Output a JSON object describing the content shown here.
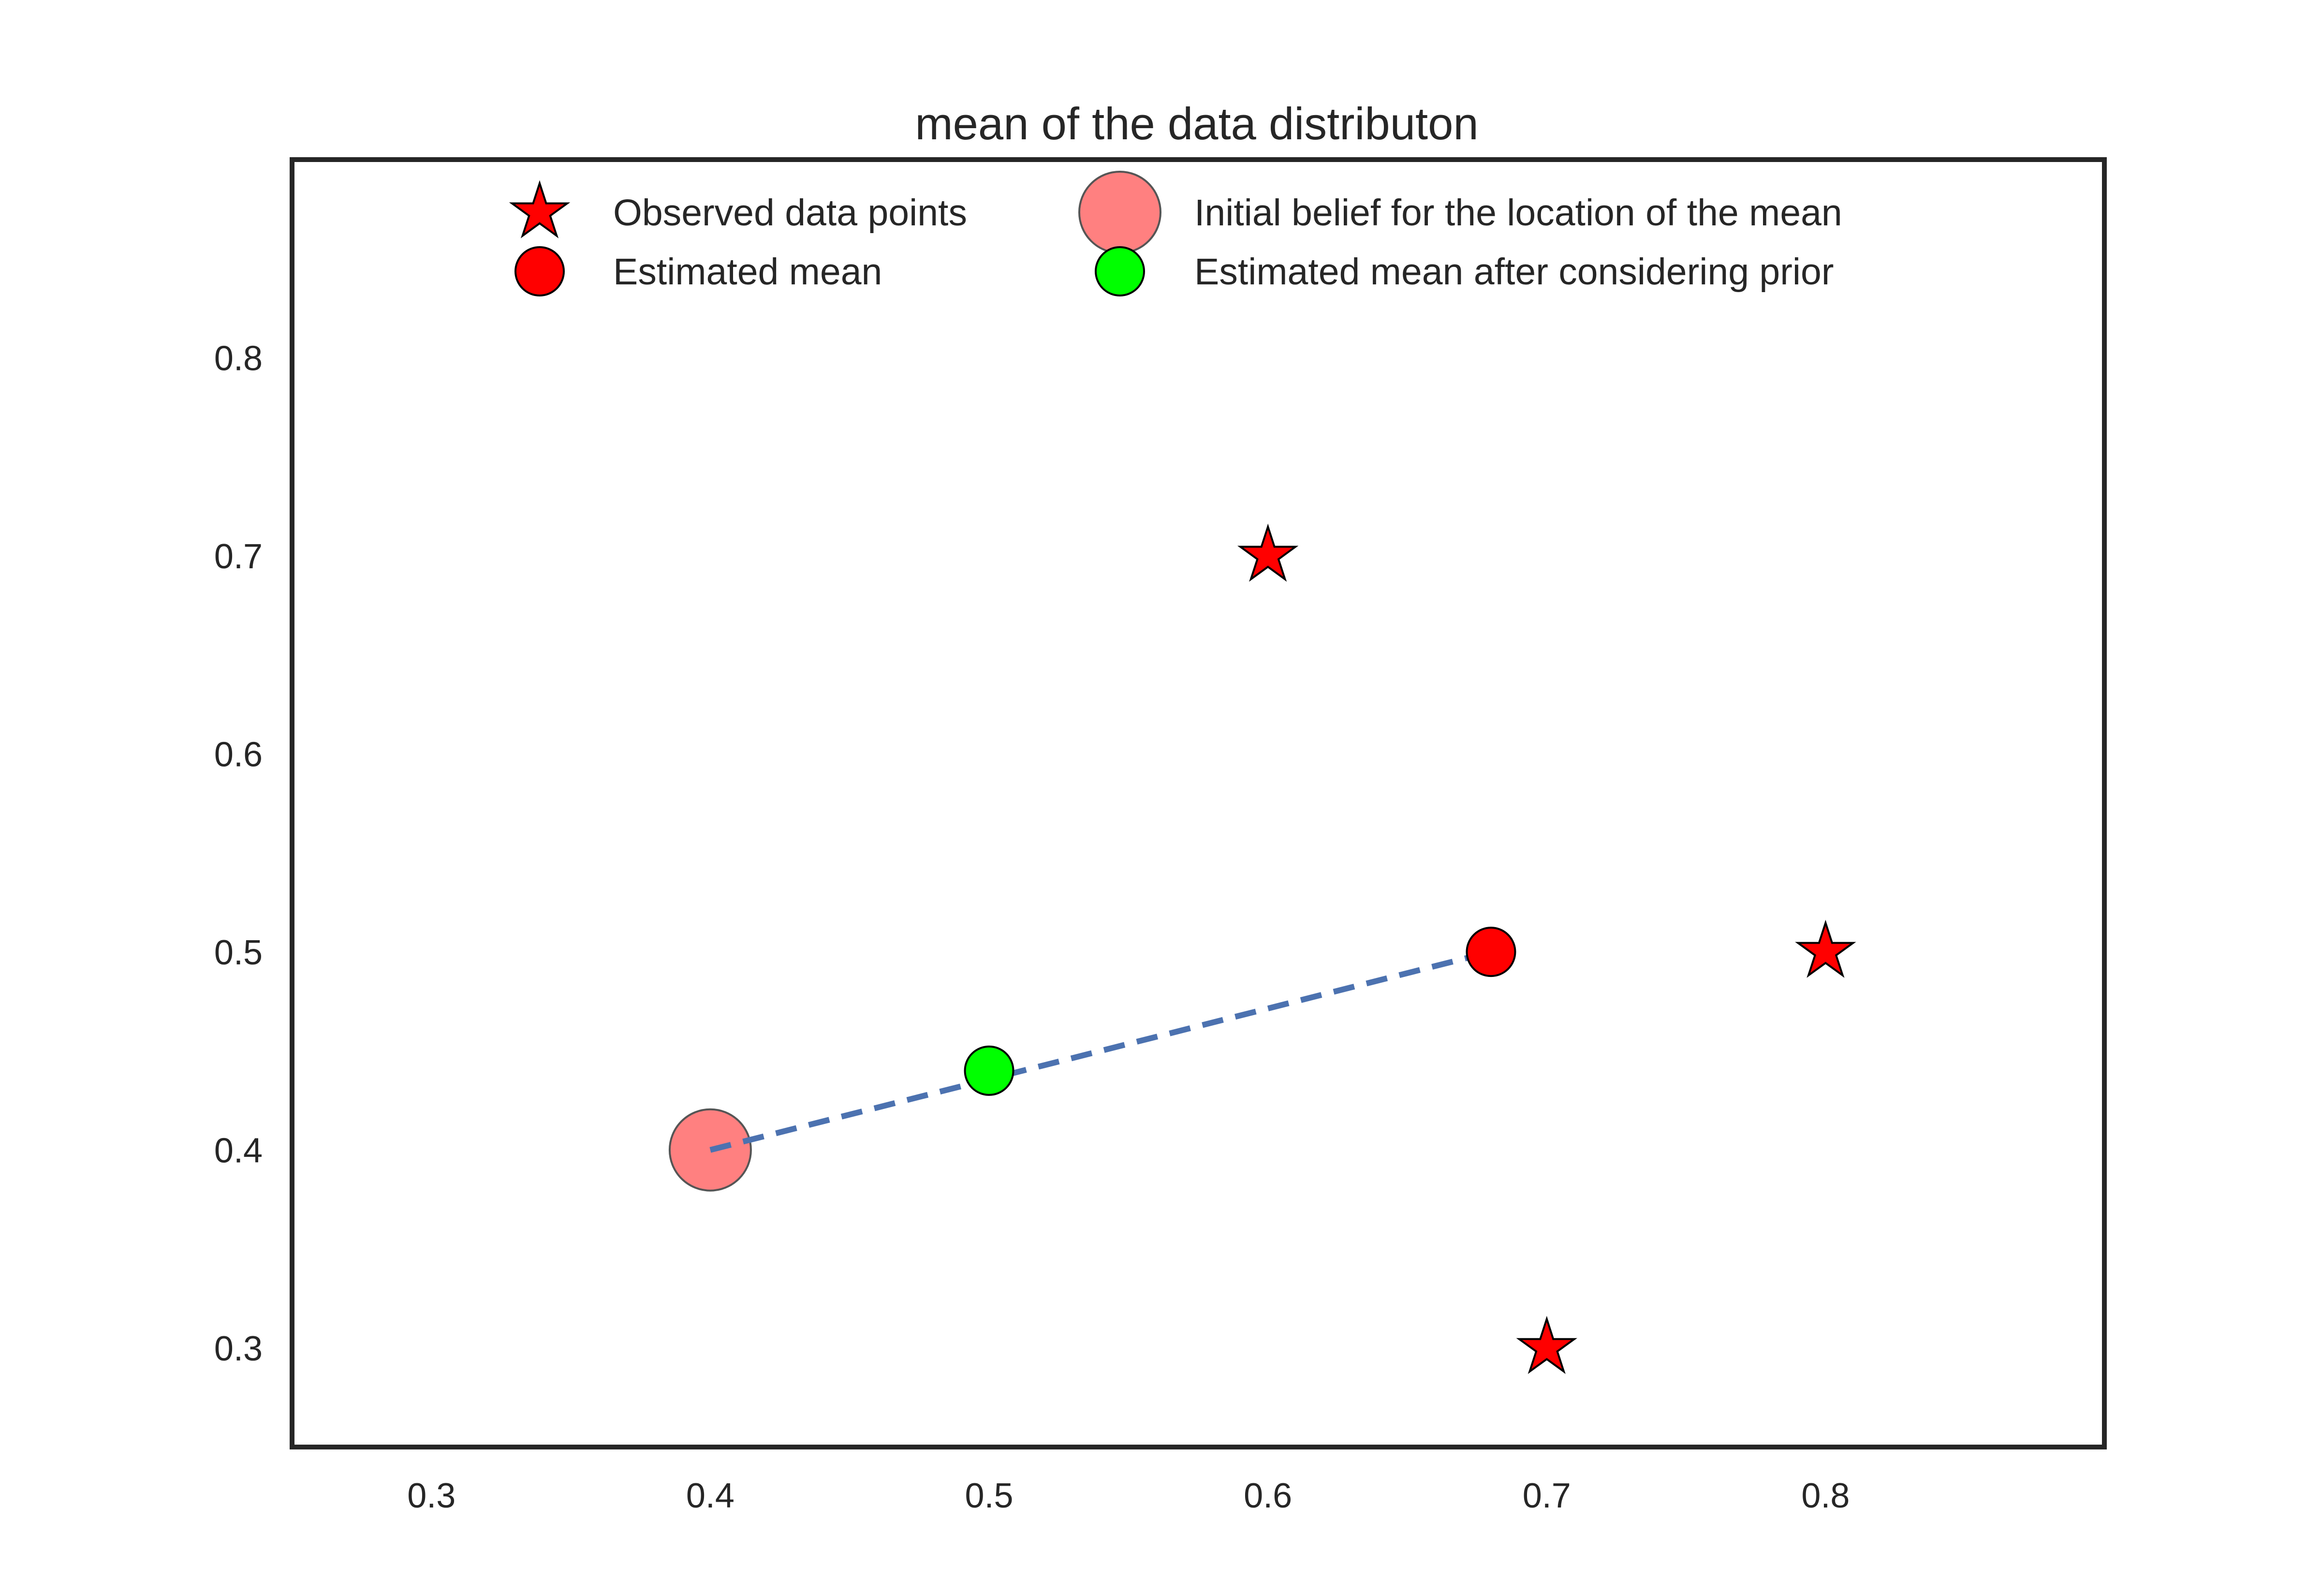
{
  "chart_data": {
    "type": "scatter",
    "title": "mean of the data distributon",
    "xlabel": "",
    "ylabel": "",
    "xlim": [
      0.25,
      0.9
    ],
    "ylim": [
      0.25,
      0.9
    ],
    "xticks": [
      0.3,
      0.4,
      0.5,
      0.6,
      0.7,
      0.8
    ],
    "yticks": [
      0.3,
      0.4,
      0.5,
      0.6,
      0.7,
      0.8
    ],
    "grid": false,
    "legend_position": "upper center",
    "series": [
      {
        "name": "Observed data points",
        "marker": "star",
        "color": "#ff0000",
        "points": [
          [
            0.6,
            0.7
          ],
          [
            0.8,
            0.5
          ],
          [
            0.7,
            0.3
          ]
        ]
      },
      {
        "name": "Estimated mean",
        "marker": "circle",
        "color": "#ff0000",
        "points": [
          [
            0.68,
            0.5
          ]
        ]
      },
      {
        "name": "Initial belief for the location of the mean",
        "marker": "circle-large",
        "color": "#ff8080",
        "points": [
          [
            0.4,
            0.4
          ]
        ]
      },
      {
        "name": "Estimated mean after considering prior",
        "marker": "circle",
        "color": "#00ff00",
        "points": [
          [
            0.5,
            0.44
          ]
        ]
      }
    ],
    "lines": [
      {
        "style": "dashed",
        "color": "#4c72b0",
        "points": [
          [
            0.4,
            0.4
          ],
          [
            0.68,
            0.5
          ]
        ]
      }
    ]
  }
}
